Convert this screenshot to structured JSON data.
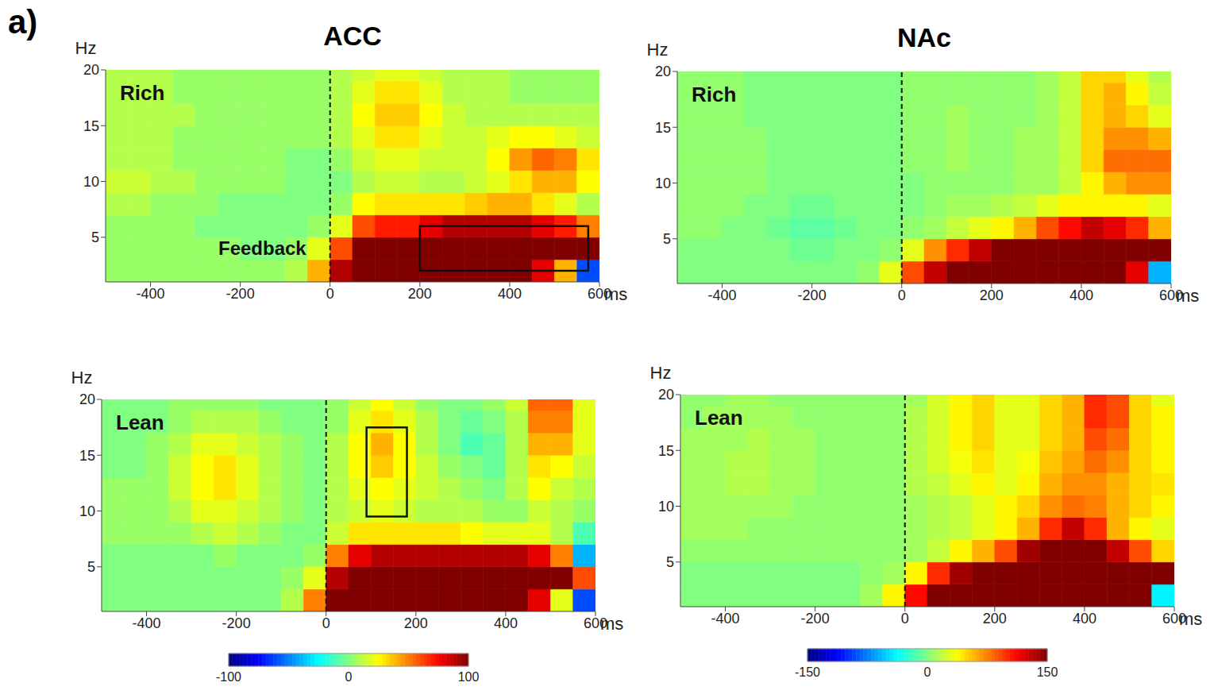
{
  "panel_label": "a)",
  "chart_data": [
    {
      "type": "heatmap",
      "group": "ACC",
      "title": "Rich",
      "xlabel": "ms",
      "ylabel": "Hz",
      "xlim": [
        -500,
        600
      ],
      "xticks": [
        -400,
        -200,
        0,
        200,
        400,
        600
      ],
      "ylim": [
        1,
        20
      ],
      "yticks": [
        5,
        10,
        15,
        20
      ],
      "x_edges": [
        -500,
        -450,
        -400,
        -350,
        -300,
        -250,
        -200,
        -150,
        -100,
        -50,
        0,
        50,
        100,
        150,
        200,
        250,
        300,
        350,
        400,
        450,
        500,
        550,
        600
      ],
      "y_edges": [
        1,
        3,
        5,
        7,
        9,
        11,
        13,
        15,
        17,
        19,
        20
      ],
      "cells": [
        [
          5,
          5,
          5,
          5,
          5,
          5,
          5,
          5,
          10,
          40,
          90,
          120,
          130,
          130,
          130,
          130,
          120,
          110,
          100,
          80,
          40,
          -60
        ],
        [
          5,
          5,
          5,
          5,
          5,
          5,
          0,
          0,
          5,
          20,
          60,
          110,
          140,
          150,
          150,
          150,
          150,
          150,
          150,
          150,
          150,
          120
        ],
        [
          5,
          5,
          5,
          5,
          0,
          0,
          0,
          0,
          0,
          5,
          20,
          60,
          70,
          70,
          80,
          90,
          90,
          90,
          90,
          80,
          70,
          50
        ],
        [
          10,
          10,
          5,
          5,
          5,
          0,
          0,
          0,
          0,
          0,
          5,
          25,
          30,
          30,
          30,
          30,
          35,
          40,
          40,
          30,
          20,
          10
        ],
        [
          15,
          15,
          10,
          10,
          5,
          5,
          5,
          5,
          0,
          0,
          0,
          10,
          15,
          15,
          10,
          10,
          15,
          20,
          30,
          40,
          40,
          25
        ],
        [
          10,
          10,
          10,
          5,
          5,
          5,
          5,
          5,
          0,
          0,
          5,
          15,
          20,
          20,
          15,
          15,
          15,
          25,
          45,
          55,
          50,
          30
        ],
        [
          10,
          10,
          10,
          5,
          5,
          5,
          5,
          5,
          5,
          5,
          10,
          20,
          30,
          30,
          20,
          15,
          15,
          20,
          25,
          25,
          20,
          15
        ],
        [
          10,
          10,
          10,
          10,
          5,
          5,
          5,
          5,
          5,
          5,
          10,
          25,
          35,
          35,
          25,
          15,
          10,
          10,
          10,
          10,
          10,
          10
        ],
        [
          10,
          10,
          10,
          5,
          5,
          5,
          5,
          5,
          5,
          5,
          10,
          20,
          30,
          30,
          20,
          10,
          10,
          10,
          5,
          5,
          5,
          5
        ],
        [
          10,
          10,
          10,
          5,
          5,
          5,
          5,
          5,
          5,
          5,
          10,
          15,
          20,
          20,
          15,
          10,
          10,
          10,
          5,
          5,
          5,
          5
        ]
      ],
      "color_range": [
        -100,
        100
      ],
      "color_ticks": [
        -100,
        0,
        100
      ],
      "event_x": 0,
      "annotations": [
        {
          "text": "Feedback",
          "x": 0
        }
      ],
      "boxes": [
        {
          "x": [
            200,
            575
          ],
          "y": [
            2,
            6
          ]
        }
      ]
    },
    {
      "type": "heatmap",
      "group": "ACC",
      "title": "Lean",
      "xlabel": "ms",
      "ylabel": "Hz",
      "xlim": [
        -500,
        600
      ],
      "xticks": [
        -400,
        -200,
        0,
        200,
        400,
        600
      ],
      "ylim": [
        1,
        20
      ],
      "yticks": [
        5,
        10,
        15,
        20
      ],
      "x_edges": [
        -500,
        -450,
        -400,
        -350,
        -300,
        -250,
        -200,
        -150,
        -100,
        -50,
        0,
        50,
        100,
        150,
        200,
        250,
        300,
        350,
        400,
        450,
        500,
        550,
        600
      ],
      "y_edges": [
        1,
        3,
        5,
        7,
        9,
        11,
        13,
        15,
        17,
        19,
        20
      ],
      "cells": [
        [
          0,
          0,
          0,
          0,
          0,
          0,
          0,
          0,
          10,
          50,
          110,
          130,
          130,
          130,
          130,
          130,
          130,
          120,
          110,
          80,
          20,
          -60
        ],
        [
          0,
          0,
          0,
          0,
          0,
          0,
          0,
          0,
          5,
          20,
          90,
          150,
          150,
          150,
          150,
          150,
          150,
          150,
          150,
          150,
          120,
          60
        ],
        [
          0,
          0,
          0,
          0,
          0,
          5,
          0,
          0,
          0,
          5,
          50,
          80,
          90,
          90,
          90,
          90,
          90,
          90,
          90,
          80,
          50,
          -40
        ],
        [
          5,
          5,
          5,
          5,
          10,
          15,
          10,
          5,
          0,
          0,
          15,
          30,
          30,
          30,
          30,
          30,
          25,
          20,
          20,
          20,
          10,
          -10
        ],
        [
          5,
          5,
          5,
          10,
          20,
          20,
          15,
          10,
          5,
          0,
          10,
          15,
          20,
          15,
          10,
          10,
          10,
          5,
          5,
          15,
          10,
          5
        ],
        [
          5,
          5,
          5,
          15,
          25,
          30,
          20,
          10,
          5,
          0,
          10,
          20,
          25,
          20,
          15,
          10,
          5,
          0,
          10,
          25,
          15,
          10
        ],
        [
          0,
          0,
          5,
          15,
          25,
          30,
          20,
          10,
          5,
          0,
          10,
          25,
          35,
          25,
          15,
          5,
          0,
          -5,
          10,
          30,
          25,
          15
        ],
        [
          0,
          0,
          5,
          10,
          20,
          20,
          15,
          10,
          5,
          0,
          10,
          25,
          40,
          25,
          10,
          0,
          -10,
          -5,
          10,
          40,
          40,
          20
        ],
        [
          0,
          0,
          0,
          5,
          10,
          10,
          10,
          5,
          0,
          0,
          5,
          20,
          30,
          20,
          10,
          0,
          -5,
          0,
          10,
          50,
          50,
          20
        ],
        [
          0,
          0,
          0,
          5,
          5,
          5,
          5,
          0,
          0,
          0,
          5,
          15,
          25,
          15,
          5,
          0,
          0,
          5,
          15,
          55,
          55,
          20
        ]
      ],
      "color_range": [
        -100,
        100
      ],
      "color_ticks": [
        -100,
        0,
        100
      ],
      "event_x": 0,
      "boxes": [
        {
          "x": [
            90,
            180
          ],
          "y": [
            9.5,
            17.5
          ]
        }
      ]
    },
    {
      "type": "heatmap",
      "group": "NAc",
      "title": "Rich",
      "xlabel": "ms",
      "ylabel": "Hz",
      "xlim": [
        -500,
        600
      ],
      "xticks": [
        -400,
        -200,
        0,
        200,
        400,
        600
      ],
      "ylim": [
        1,
        20
      ],
      "yticks": [
        5,
        10,
        15,
        20
      ],
      "x_edges": [
        -500,
        -450,
        -400,
        -350,
        -300,
        -250,
        -200,
        -150,
        -100,
        -50,
        0,
        50,
        100,
        150,
        200,
        250,
        300,
        350,
        400,
        450,
        500,
        550,
        600
      ],
      "y_edges": [
        1,
        3,
        5,
        7,
        9,
        11,
        13,
        15,
        17,
        19,
        20
      ],
      "cells": [
        [
          0,
          0,
          0,
          0,
          0,
          0,
          0,
          0,
          5,
          30,
          90,
          130,
          160,
          180,
          200,
          200,
          200,
          200,
          200,
          180,
          120,
          -60
        ],
        [
          0,
          0,
          0,
          0,
          0,
          -5,
          -5,
          0,
          0,
          5,
          30,
          70,
          100,
          130,
          170,
          200,
          200,
          200,
          200,
          200,
          200,
          150
        ],
        [
          5,
          5,
          0,
          0,
          -5,
          -10,
          -10,
          -5,
          0,
          0,
          5,
          10,
          20,
          30,
          40,
          60,
          90,
          110,
          130,
          120,
          100,
          60
        ],
        [
          5,
          5,
          5,
          0,
          0,
          -5,
          -5,
          0,
          0,
          0,
          0,
          5,
          10,
          10,
          15,
          20,
          30,
          40,
          40,
          40,
          40,
          30
        ],
        [
          5,
          5,
          5,
          5,
          0,
          0,
          0,
          0,
          0,
          0,
          0,
          5,
          5,
          5,
          5,
          10,
          10,
          20,
          40,
          60,
          70,
          70
        ],
        [
          5,
          5,
          5,
          5,
          0,
          0,
          0,
          0,
          0,
          0,
          5,
          5,
          10,
          5,
          5,
          10,
          10,
          20,
          50,
          80,
          80,
          80
        ],
        [
          5,
          5,
          5,
          5,
          0,
          0,
          0,
          0,
          0,
          0,
          5,
          5,
          10,
          5,
          5,
          10,
          10,
          20,
          50,
          70,
          70,
          60
        ],
        [
          5,
          5,
          5,
          0,
          0,
          0,
          0,
          0,
          0,
          0,
          5,
          5,
          10,
          5,
          5,
          5,
          10,
          20,
          50,
          60,
          50,
          30
        ],
        [
          5,
          5,
          5,
          0,
          0,
          0,
          0,
          0,
          0,
          0,
          5,
          5,
          5,
          5,
          5,
          5,
          10,
          20,
          50,
          60,
          40,
          20
        ],
        [
          5,
          5,
          5,
          0,
          0,
          0,
          0,
          0,
          0,
          0,
          5,
          5,
          5,
          5,
          5,
          5,
          10,
          20,
          50,
          50,
          30,
          15
        ]
      ],
      "color_range": [
        -150,
        150
      ],
      "color_ticks": [
        -150,
        0,
        150
      ],
      "event_x": 0
    },
    {
      "type": "heatmap",
      "group": "NAc",
      "title": "Lean",
      "xlabel": "ms",
      "ylabel": "Hz",
      "xlim": [
        -500,
        600
      ],
      "xticks": [
        -400,
        -200,
        0,
        200,
        400,
        600
      ],
      "ylim": [
        1,
        20
      ],
      "yticks": [
        5,
        10,
        15,
        20
      ],
      "x_edges": [
        -500,
        -450,
        -400,
        -350,
        -300,
        -250,
        -200,
        -150,
        -100,
        -50,
        0,
        50,
        100,
        150,
        200,
        250,
        300,
        350,
        400,
        450,
        500,
        550,
        600
      ],
      "y_edges": [
        1,
        3,
        5,
        7,
        9,
        11,
        13,
        15,
        17,
        19,
        20
      ],
      "cells": [
        [
          0,
          0,
          0,
          0,
          0,
          0,
          0,
          0,
          10,
          40,
          110,
          160,
          180,
          200,
          200,
          200,
          200,
          200,
          200,
          180,
          150,
          -40
        ],
        [
          0,
          0,
          0,
          0,
          0,
          0,
          0,
          0,
          5,
          10,
          40,
          100,
          140,
          180,
          200,
          200,
          200,
          200,
          200,
          200,
          200,
          150
        ],
        [
          5,
          5,
          5,
          5,
          5,
          5,
          5,
          5,
          5,
          5,
          10,
          20,
          40,
          60,
          90,
          140,
          180,
          200,
          170,
          130,
          90,
          50
        ],
        [
          10,
          10,
          10,
          5,
          5,
          5,
          5,
          5,
          5,
          5,
          10,
          15,
          20,
          30,
          40,
          60,
          100,
          130,
          100,
          60,
          40,
          30
        ],
        [
          10,
          10,
          10,
          10,
          10,
          5,
          5,
          5,
          5,
          5,
          10,
          15,
          20,
          30,
          40,
          50,
          70,
          80,
          75,
          60,
          50,
          40
        ],
        [
          10,
          10,
          15,
          15,
          10,
          10,
          5,
          5,
          5,
          5,
          15,
          20,
          30,
          40,
          30,
          40,
          60,
          70,
          70,
          60,
          50,
          45
        ],
        [
          10,
          10,
          15,
          15,
          10,
          10,
          5,
          5,
          5,
          5,
          15,
          25,
          35,
          45,
          30,
          35,
          55,
          65,
          80,
          70,
          50,
          40
        ],
        [
          10,
          10,
          10,
          15,
          10,
          10,
          5,
          5,
          5,
          5,
          15,
          25,
          40,
          50,
          30,
          30,
          50,
          60,
          90,
          80,
          50,
          40
        ],
        [
          5,
          10,
          10,
          10,
          10,
          5,
          5,
          5,
          5,
          5,
          15,
          25,
          40,
          50,
          30,
          30,
          50,
          60,
          100,
          90,
          50,
          40
        ],
        [
          5,
          5,
          10,
          10,
          5,
          5,
          5,
          5,
          5,
          5,
          10,
          25,
          40,
          50,
          30,
          30,
          50,
          60,
          100,
          90,
          50,
          30
        ]
      ],
      "color_range": [
        -150,
        150
      ],
      "color_ticks": [
        -150,
        0,
        150
      ],
      "event_x": 0
    }
  ]
}
